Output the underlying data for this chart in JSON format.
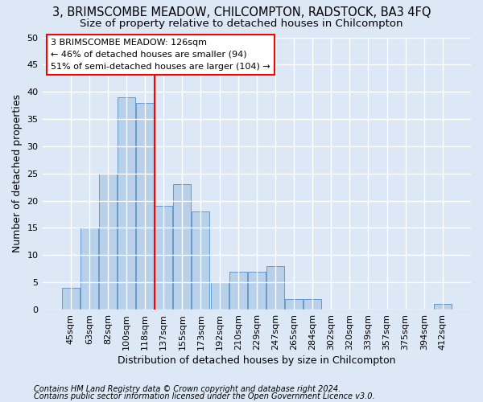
{
  "title1": "3, BRIMSCOMBE MEADOW, CHILCOMPTON, RADSTOCK, BA3 4FQ",
  "title2": "Size of property relative to detached houses in Chilcompton",
  "xlabel": "Distribution of detached houses by size in Chilcompton",
  "ylabel": "Number of detached properties",
  "categories": [
    "45sqm",
    "63sqm",
    "82sqm",
    "100sqm",
    "118sqm",
    "137sqm",
    "155sqm",
    "173sqm",
    "192sqm",
    "210sqm",
    "229sqm",
    "247sqm",
    "265sqm",
    "284sqm",
    "302sqm",
    "320sqm",
    "339sqm",
    "357sqm",
    "375sqm",
    "394sqm",
    "412sqm"
  ],
  "values": [
    4,
    15,
    25,
    39,
    38,
    19,
    23,
    18,
    5,
    7,
    7,
    8,
    2,
    2,
    0,
    0,
    0,
    0,
    0,
    0,
    1
  ],
  "bar_color": "#b8d0e8",
  "bar_edge_color": "#6699cc",
  "ylim": [
    0,
    50
  ],
  "yticks": [
    0,
    5,
    10,
    15,
    20,
    25,
    30,
    35,
    40,
    45,
    50
  ],
  "annotation_box_text": "3 BRIMSCOMBE MEADOW: 126sqm\n← 46% of detached houses are smaller (94)\n51% of semi-detached houses are larger (104) →",
  "redline_x": 4.5,
  "footnote1": "Contains HM Land Registry data © Crown copyright and database right 2024.",
  "footnote2": "Contains public sector information licensed under the Open Government Licence v3.0.",
  "background_color": "#dce8f5",
  "grid_color": "#ffffff",
  "title_fontsize": 10.5,
  "subtitle_fontsize": 9.5,
  "tick_fontsize": 8,
  "label_fontsize": 9,
  "footnote_fontsize": 7
}
